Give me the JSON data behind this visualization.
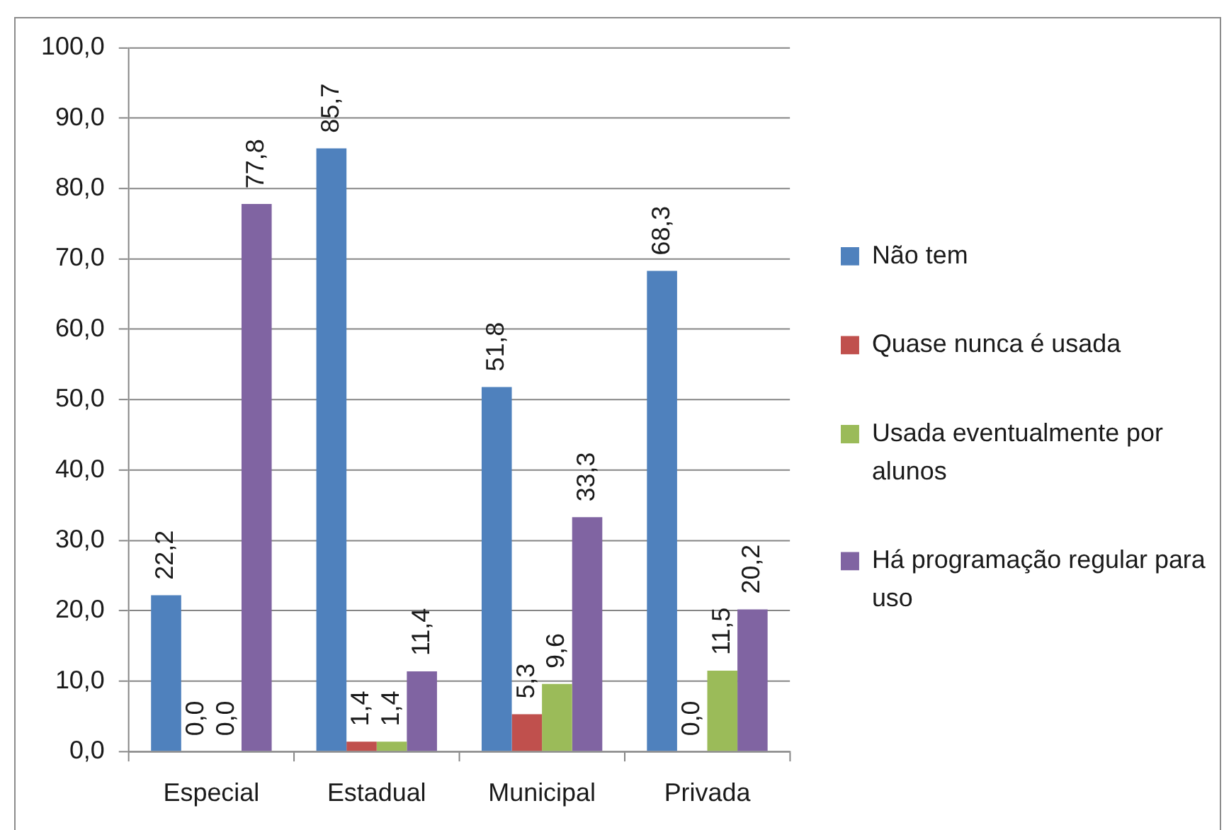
{
  "chart_data": {
    "type": "bar",
    "categories": [
      "Especial",
      "Estadual",
      "Municipal",
      "Privada"
    ],
    "series": [
      {
        "name": "Não tem",
        "color": "#4f81bd",
        "values": [
          22.2,
          85.7,
          51.8,
          68.3
        ],
        "value_labels": [
          "22,2",
          "85,7",
          "51,8",
          "68,3"
        ]
      },
      {
        "name": "Quase nunca é usada",
        "color": "#c0504d",
        "values": [
          0,
          1.4,
          5.3,
          0
        ],
        "value_labels": [
          "0,0",
          "1,4",
          "5,3",
          "0,0"
        ]
      },
      {
        "name": "Usada eventualmente por alunos",
        "color": "#9bbb59",
        "values": [
          0,
          1.4,
          9.6,
          11.5
        ],
        "value_labels": [
          "0,0",
          "1,4",
          "9,6",
          "11,5"
        ]
      },
      {
        "name": "Há programação regular para uso",
        "color": "#8064a2",
        "values": [
          77.8,
          11.4,
          33.3,
          20.2
        ],
        "value_labels": [
          "77,8",
          "11,4",
          "33,3",
          "20,2"
        ]
      }
    ],
    "ylim": [
      0,
      100
    ],
    "yticks": [
      {
        "value": 0,
        "label": "0,0"
      },
      {
        "value": 10,
        "label": "10,0"
      },
      {
        "value": 20,
        "label": "20,0"
      },
      {
        "value": 30,
        "label": "30,0"
      },
      {
        "value": 40,
        "label": "40,0"
      },
      {
        "value": 50,
        "label": "50,0"
      },
      {
        "value": 60,
        "label": "60,0"
      },
      {
        "value": 70,
        "label": "70,0"
      },
      {
        "value": 80,
        "label": "80,0"
      },
      {
        "value": 90,
        "label": "90,0"
      },
      {
        "value": 100,
        "label": "100,0"
      }
    ],
    "grid": "y",
    "legend": "right"
  }
}
